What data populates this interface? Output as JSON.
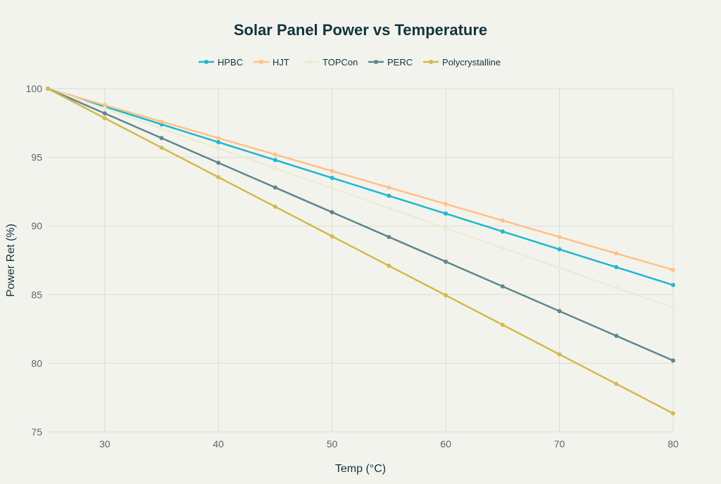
{
  "chart_data": {
    "type": "line",
    "title": "Solar Panel Power vs Temperature",
    "xlabel": "Temp (°C)",
    "ylabel": "Power Ret (%)",
    "xlim": [
      25,
      80
    ],
    "ylim": [
      75,
      100
    ],
    "xticks": [
      30,
      40,
      50,
      60,
      70,
      80
    ],
    "yticks": [
      75,
      80,
      85,
      90,
      95,
      100
    ],
    "grid": true,
    "legend_position": "top-center",
    "x": [
      25,
      30,
      35,
      40,
      45,
      50,
      55,
      60,
      65,
      70,
      75,
      80
    ],
    "series": [
      {
        "name": "HPBC",
        "color": "#1FB8CD",
        "values": [
          100,
          98.7,
          97.4,
          96.1,
          94.8,
          93.5,
          92.2,
          90.9,
          89.6,
          88.3,
          87.0,
          85.7
        ]
      },
      {
        "name": "HJT",
        "color": "#FFC185",
        "values": [
          100,
          98.8,
          97.6,
          96.4,
          95.2,
          94.0,
          92.8,
          91.6,
          90.4,
          89.2,
          88.0,
          86.8
        ]
      },
      {
        "name": "TOPCon",
        "color": "#ECEBD5",
        "values": [
          100,
          98.55,
          97.1,
          95.65,
          94.2,
          92.75,
          91.3,
          89.85,
          88.4,
          86.95,
          85.5,
          84.05
        ]
      },
      {
        "name": "PERC",
        "color": "#5D878F",
        "values": [
          100,
          98.2,
          96.4,
          94.6,
          92.8,
          91.0,
          89.2,
          87.4,
          85.6,
          83.8,
          82.0,
          80.2
        ]
      },
      {
        "name": "Polycrystalline",
        "color": "#D2BA4C",
        "values": [
          100,
          97.85,
          95.7,
          93.55,
          91.4,
          89.25,
          87.1,
          84.95,
          82.8,
          80.65,
          78.5,
          76.35
        ]
      }
    ]
  }
}
